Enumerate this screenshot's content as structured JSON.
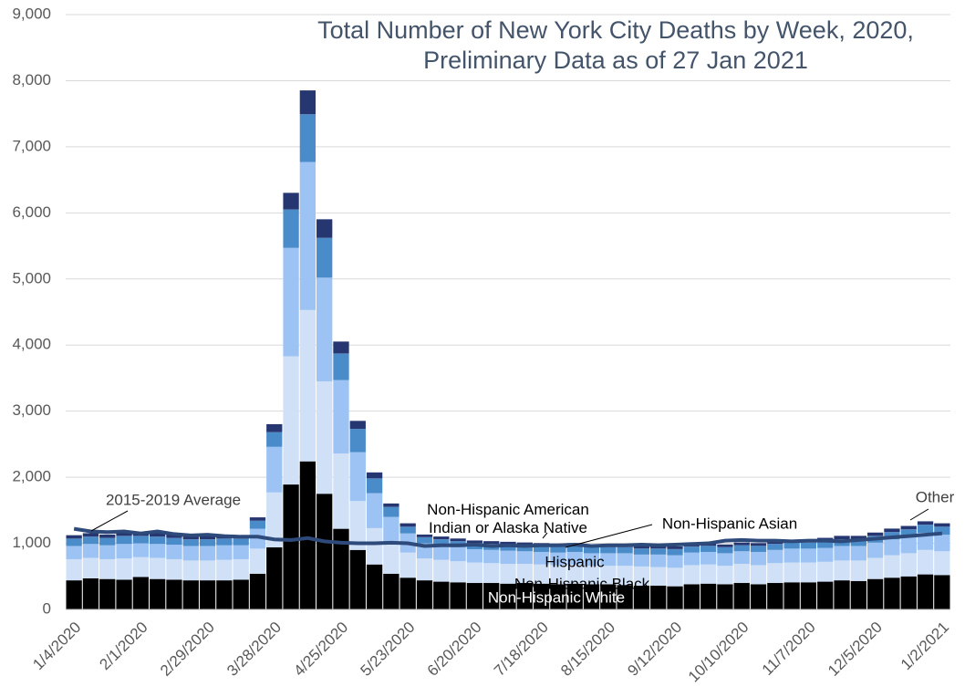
{
  "chart_data": {
    "type": "bar",
    "stacked": true,
    "title": [
      "Total Number of New York City Deaths by Week, 2020,",
      "Preliminary Data as of 27 Jan 2021"
    ],
    "categories": [
      "1/4/2020",
      null,
      null,
      null,
      "2/1/2020",
      null,
      null,
      null,
      "2/29/2020",
      null,
      null,
      null,
      "3/28/2020",
      null,
      null,
      null,
      "4/25/2020",
      null,
      null,
      null,
      "5/23/2020",
      null,
      null,
      null,
      "6/20/2020",
      null,
      null,
      null,
      "7/18/2020",
      null,
      null,
      null,
      "8/15/2020",
      null,
      null,
      null,
      "9/12/2020",
      null,
      null,
      null,
      "10/10/2020",
      null,
      null,
      null,
      "11/7/2020",
      null,
      null,
      null,
      "12/5/2020",
      null,
      null,
      null,
      "1/2/2021"
    ],
    "ylim": [
      0,
      9000
    ],
    "yticks": [
      0,
      {
        "value": 1000,
        "label": "1,000"
      },
      {
        "value": 2000,
        "label": "2,000"
      },
      {
        "value": 3000,
        "label": "3,000"
      },
      {
        "value": 4000,
        "label": "4,000"
      },
      {
        "value": 5000,
        "label": "5,000"
      },
      {
        "value": 6000,
        "label": "6,000"
      },
      {
        "value": 7000,
        "label": "7,000"
      },
      {
        "value": 8000,
        "label": "8,000"
      },
      {
        "value": 9000,
        "label": "9,000"
      }
    ],
    "grid": true,
    "series": [
      {
        "name": "Non-Hispanic White",
        "color": "#000000",
        "values": [
          440,
          470,
          460,
          450,
          490,
          460,
          450,
          440,
          440,
          440,
          450,
          540,
          940,
          1890,
          2240,
          1750,
          1220,
          900,
          680,
          540,
          480,
          440,
          420,
          410,
          400,
          400,
          390,
          400,
          390,
          380,
          390,
          380,
          380,
          370,
          360,
          360,
          350,
          380,
          390,
          380,
          400,
          380,
          400,
          410,
          410,
          420,
          440,
          430,
          460,
          480,
          500,
          530,
          520
        ]
      },
      {
        "name": "Non-Hispanic Black",
        "color": "#cfe0f7",
        "values": [
          320,
          310,
          300,
          320,
          300,
          320,
          310,
          300,
          300,
          310,
          310,
          380,
          830,
          1940,
          2290,
          1700,
          1140,
          740,
          550,
          440,
          380,
          330,
          330,
          320,
          310,
          300,
          300,
          290,
          290,
          290,
          290,
          280,
          280,
          290,
          290,
          280,
          280,
          290,
          290,
          280,
          290,
          290,
          300,
          300,
          300,
          300,
          300,
          310,
          320,
          340,
          350,
          370,
          360
        ]
      },
      {
        "name": "Hispanic",
        "color": "#9cc3f3",
        "values": [
          200,
          210,
          210,
          220,
          210,
          210,
          220,
          220,
          220,
          220,
          210,
          300,
          690,
          1640,
          2240,
          1570,
          1110,
          740,
          530,
          420,
          290,
          230,
          220,
          210,
          200,
          200,
          200,
          190,
          190,
          190,
          190,
          190,
          190,
          190,
          180,
          190,
          190,
          190,
          190,
          190,
          190,
          200,
          200,
          210,
          210,
          210,
          220,
          220,
          230,
          240,
          250,
          260,
          250
        ]
      },
      {
        "name": "Non-Hispanic Asian",
        "color": "#4a8bc9",
        "values": [
          110,
          110,
          110,
          120,
          110,
          110,
          100,
          100,
          100,
          100,
          100,
          120,
          220,
          580,
          720,
          600,
          400,
          350,
          220,
          150,
          100,
          90,
          90,
          90,
          90,
          90,
          90,
          90,
          90,
          90,
          90,
          90,
          90,
          90,
          90,
          90,
          90,
          90,
          90,
          90,
          90,
          90,
          90,
          90,
          90,
          100,
          100,
          100,
          100,
          110,
          110,
          120,
          120
        ]
      },
      {
        "name": "Non-Hispanic American Indian or Alaska Native",
        "color": "#2f5597",
        "values": [
          3,
          3,
          3,
          3,
          3,
          3,
          3,
          3,
          3,
          3,
          3,
          3,
          3,
          3,
          3,
          3,
          3,
          3,
          3,
          3,
          3,
          3,
          3,
          3,
          3,
          3,
          3,
          3,
          3,
          3,
          3,
          3,
          3,
          3,
          3,
          3,
          3,
          3,
          3,
          3,
          3,
          3,
          3,
          3,
          3,
          3,
          3,
          3,
          3,
          3,
          3,
          3,
          3
        ]
      },
      {
        "name": "Other",
        "color": "#263671",
        "values": [
          50,
          50,
          50,
          50,
          50,
          50,
          50,
          50,
          50,
          50,
          50,
          50,
          120,
          250,
          360,
          280,
          180,
          120,
          90,
          50,
          50,
          40,
          40,
          40,
          40,
          40,
          40,
          40,
          40,
          40,
          40,
          40,
          40,
          40,
          40,
          40,
          40,
          40,
          40,
          40,
          40,
          40,
          40,
          40,
          40,
          50,
          50,
          50,
          50,
          50,
          50,
          50,
          50
        ]
      },
      {
        "name": "2015-2019 Average",
        "type": "line",
        "color": "#2e4a7a",
        "values": [
          1220,
          1180,
          1170,
          1180,
          1150,
          1180,
          1140,
          1120,
          1130,
          1110,
          1100,
          1100,
          1060,
          1050,
          1080,
          1030,
          1010,
          1000,
          1000,
          1010,
          1000,
          960,
          970,
          970,
          980,
          960,
          970,
          960,
          970,
          970,
          980,
          960,
          970,
          970,
          980,
          970,
          980,
          990,
          1000,
          1040,
          1050,
          1040,
          1040,
          1030,
          1040,
          1040,
          1030,
          1050,
          1070,
          1090,
          1110,
          1130,
          1150
        ]
      }
    ]
  }
}
